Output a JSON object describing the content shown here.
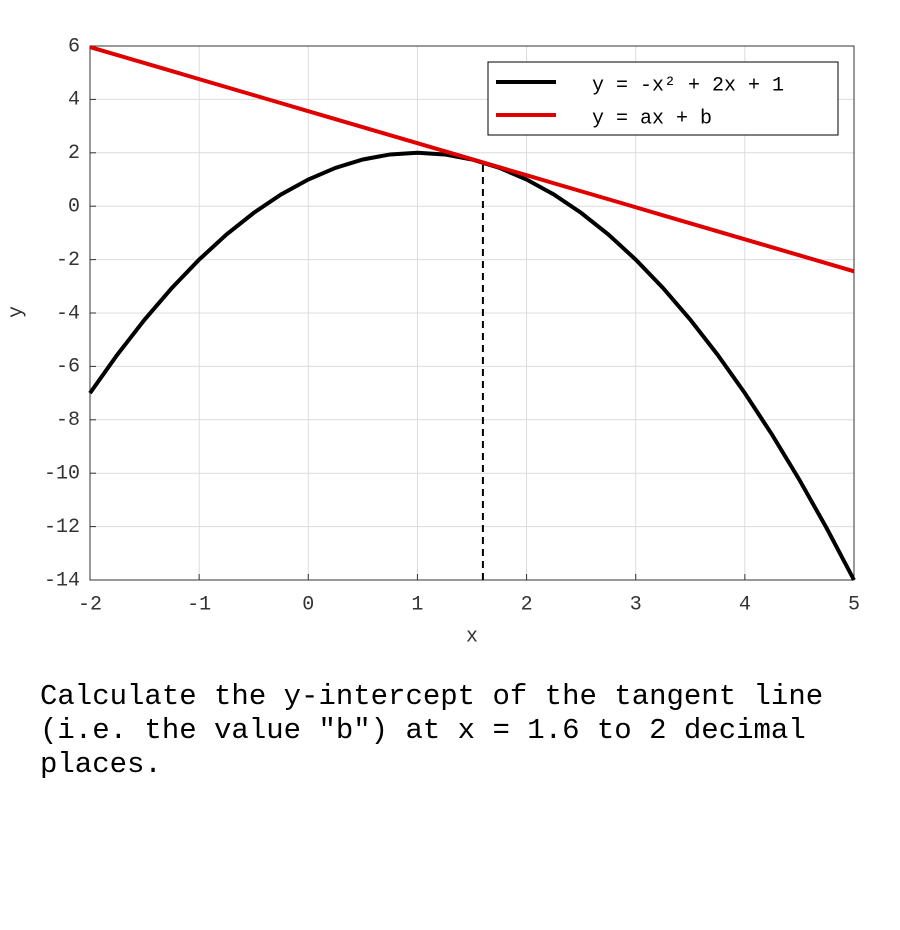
{
  "chart_data": {
    "type": "line",
    "x": [
      -2,
      -1.75,
      -1.5,
      -1.25,
      -1,
      -0.75,
      -0.5,
      -0.25,
      0,
      0.25,
      0.5,
      0.75,
      1,
      1.25,
      1.5,
      1.75,
      2,
      2.25,
      2.5,
      2.75,
      3,
      3.25,
      3.5,
      3.75,
      4,
      4.25,
      4.5,
      4.75,
      5
    ],
    "series": [
      {
        "name": "y = -x² + 2x + 1",
        "color": "#000000",
        "values": [
          -7,
          -5.5625,
          -4.25,
          -3.0625,
          -2,
          -1.0625,
          -0.25,
          0.4375,
          1,
          1.4375,
          1.75,
          1.9375,
          2,
          1.9375,
          1.75,
          1.4375,
          1,
          0.4375,
          -0.25,
          -1.0625,
          -2,
          -3.0625,
          -4.25,
          -5.5625,
          -7,
          -8.5625,
          -10.25,
          -12.0625,
          -14
        ]
      },
      {
        "name": "y = ax + b",
        "color": "#e00000",
        "values": [
          5.96,
          5.66,
          5.36,
          5.06,
          4.76,
          4.46,
          4.16,
          3.86,
          3.56,
          3.26,
          2.96,
          2.66,
          2.36,
          2.06,
          1.76,
          1.46,
          1.16,
          0.86,
          0.56,
          0.26,
          -0.04,
          -0.34,
          -0.64,
          -0.94,
          -1.24,
          -1.54,
          -1.84,
          -2.14,
          -2.44
        ]
      }
    ],
    "dashed_marker": {
      "x": 1.6,
      "y": 1.64
    },
    "xlabel": "x",
    "ylabel": "y",
    "xlim": [
      -2,
      5
    ],
    "xticks": [
      -2,
      -1,
      0,
      1,
      2,
      3,
      4,
      5
    ],
    "ylim": [
      -14,
      6
    ],
    "yticks": [
      -14,
      -12,
      -10,
      -8,
      -6,
      -4,
      -2,
      0,
      2,
      4,
      6
    ],
    "grid": true,
    "legend": "upper right"
  },
  "question": "Calculate the y-intercept of the tangent line (i.e. the value \"b\") at x = 1.6 to 2 decimal places."
}
